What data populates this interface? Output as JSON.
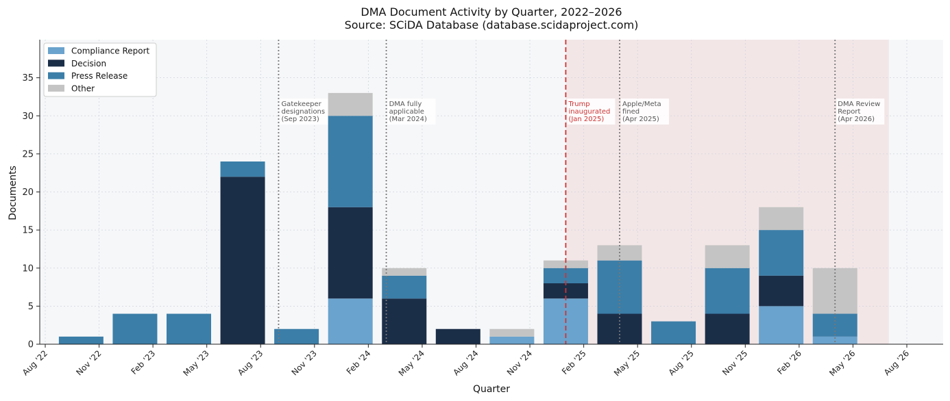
{
  "chart_data": {
    "type": "bar",
    "stacked": true,
    "title": "DMA Document Activity by Quarter, 2022–2026",
    "subtitle": "Source: SCiDA Database (database.scidaproject.com)",
    "xlabel": "Quarter",
    "ylabel": "Documents",
    "ylim": [
      0,
      40
    ],
    "yticks": [
      0,
      5,
      10,
      15,
      20,
      25,
      30,
      35
    ],
    "grid": true,
    "legend_position": "top-left",
    "x_ticks": [
      "Aug '22",
      "Nov '22",
      "Feb '23",
      "May '23",
      "Aug '23",
      "Nov '23",
      "Feb '24",
      "May '24",
      "Aug '24",
      "Nov '24",
      "Feb '25",
      "May '25",
      "Aug '25",
      "Nov '25",
      "Feb '26",
      "May '26",
      "Aug '26"
    ],
    "categories": [
      "Oct 2022",
      "Jan 2023",
      "Apr 2023",
      "Jul 2023",
      "Oct 2023",
      "Jan 2024",
      "Apr 2024",
      "Jul 2024",
      "Oct 2024",
      "Jan 2025",
      "Apr 2025",
      "Jul 2025",
      "Oct 2025",
      "Jan 2026",
      "Apr 2026"
    ],
    "series": [
      {
        "name": "Compliance Report",
        "color": "#6aa3cd",
        "values": [
          0,
          0,
          0,
          0,
          0,
          6,
          0,
          0,
          1,
          6,
          0,
          0,
          0,
          5,
          1
        ]
      },
      {
        "name": "Decision",
        "color": "#1b2e48",
        "values": [
          0,
          0,
          0,
          22,
          0,
          12,
          6,
          2,
          0,
          2,
          4,
          0,
          4,
          4,
          0
        ]
      },
      {
        "name": "Press Release",
        "color": "#3b7ea8",
        "values": [
          1,
          4,
          4,
          2,
          2,
          12,
          3,
          0,
          0,
          2,
          7,
          3,
          6,
          6,
          3
        ]
      },
      {
        "name": "Other",
        "color": "#c4c4c4",
        "values": [
          0,
          0,
          0,
          0,
          0,
          3,
          1,
          0,
          1,
          1,
          2,
          0,
          3,
          3,
          6
        ]
      }
    ],
    "shaded_period": {
      "start": "Jan 2025",
      "end": "Jul 2026",
      "color": "#f0d8d8"
    },
    "events": [
      {
        "date": "Sep 2023",
        "lines": [
          "Gatekeeper",
          "designations",
          "(Sep 2023)"
        ],
        "style": "dotted",
        "color": "#777777",
        "text_color": "#555555"
      },
      {
        "date": "Mar 2024",
        "lines": [
          "DMA fully",
          "applicable",
          "(Mar 2024)"
        ],
        "style": "dotted",
        "color": "#777777",
        "text_color": "#555555"
      },
      {
        "date": "Jan 2025",
        "lines": [
          "Trump",
          "inaugurated",
          "(Jan 2025)"
        ],
        "style": "dashed",
        "color": "#cc3333",
        "text_color": "#cc3333"
      },
      {
        "date": "Apr 2025",
        "lines": [
          "Apple/Meta",
          "fined",
          "(Apr 2025)"
        ],
        "style": "dotted",
        "color": "#777777",
        "text_color": "#555555"
      },
      {
        "date": "Apr 2026",
        "lines": [
          "DMA Review",
          "Report",
          "(Apr 2026)"
        ],
        "style": "dotted",
        "color": "#777777",
        "text_color": "#555555"
      }
    ]
  }
}
